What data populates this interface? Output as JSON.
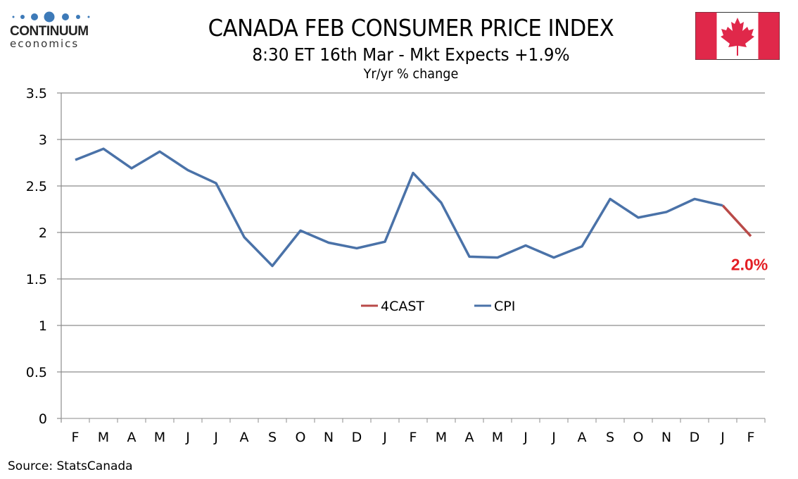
{
  "branding": {
    "logo_name": "CONTINUUM",
    "logo_sub": "economics",
    "logo_dot_color": "#3d7ab8",
    "flag_icon": "canada-flag-icon"
  },
  "header": {
    "title": "CANADA FEB CONSUMER PRICE INDEX",
    "subtitle": "8:30 ET 16th Mar - Mkt Expects +1.9%",
    "unit": "Yr/yr % change"
  },
  "footer": {
    "source": "Source: StatsCanada"
  },
  "chart_data": {
    "type": "line",
    "title": "CANADA FEB CONSUMER PRICE INDEX",
    "subtitle": "8:30 ET 16th Mar - Mkt Expects +1.9%",
    "xlabel": "",
    "ylabel": "Yr/yr % change",
    "ylim": [
      0,
      3.5
    ],
    "yticks": [
      "0",
      "0.5",
      "1",
      "1.5",
      "2",
      "2.5",
      "3",
      "3.5"
    ],
    "ytick_values": [
      0,
      0.5,
      1,
      1.5,
      2,
      2.5,
      3,
      3.5
    ],
    "grid": true,
    "categories": [
      "F",
      "M",
      "A",
      "M",
      "J",
      "J",
      "A",
      "S",
      "O",
      "N",
      "D",
      "J",
      "F",
      "M",
      "A",
      "M",
      "J",
      "J",
      "A",
      "S",
      "O",
      "N",
      "D",
      "J",
      "F"
    ],
    "series": [
      {
        "name": "CPI",
        "color": "#4a72a8",
        "values": [
          2.78,
          2.9,
          2.69,
          2.87,
          2.67,
          2.53,
          1.95,
          1.64,
          2.02,
          1.89,
          1.83,
          1.9,
          2.64,
          2.32,
          1.74,
          1.73,
          1.86,
          1.73,
          1.85,
          2.36,
          2.16,
          2.22,
          2.36,
          2.29,
          null
        ]
      },
      {
        "name": "4CAST",
        "color": "#b94a48",
        "values": [
          null,
          null,
          null,
          null,
          null,
          null,
          null,
          null,
          null,
          null,
          null,
          null,
          null,
          null,
          null,
          null,
          null,
          null,
          null,
          null,
          null,
          null,
          null,
          2.29,
          1.96
        ]
      }
    ],
    "legend": {
      "placement": "center",
      "entries": [
        "4CAST",
        "CPI"
      ]
    },
    "annotations": [
      {
        "text": "2.0%",
        "series": "4CAST",
        "category_index": 24,
        "color": "#e31e24"
      }
    ]
  }
}
